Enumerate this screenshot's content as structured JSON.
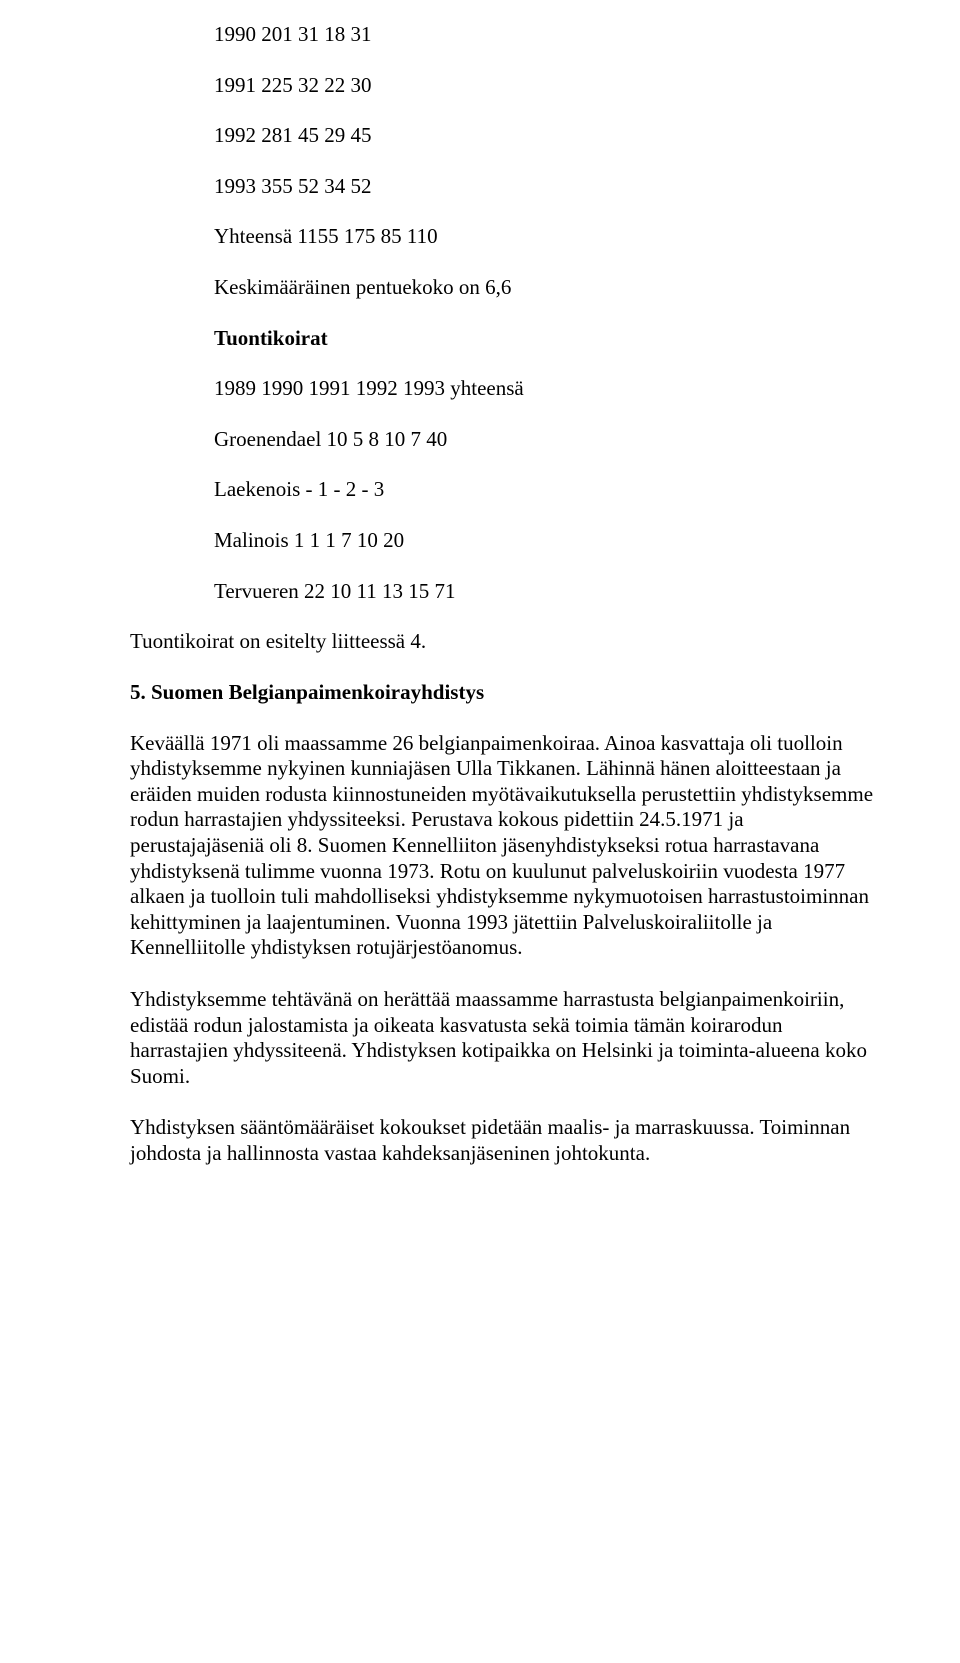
{
  "rows": {
    "r1990": "1990 201 31 18 31",
    "r1991": "1991 225 32 22 30",
    "r1992": "1992 281 45 29 45",
    "r1993": "1993 355 52 34 52",
    "total": "Yhteensä 1155 175 85 110"
  },
  "avg_litter": "Keskimääräinen pentuekoko on 6,6",
  "import_heading": "Tuontikoirat",
  "import_years": "1989 1990 1991 1992 1993 yhteensä",
  "import": {
    "groenendael": "Groenendael 10 5 8 10 7 40",
    "laekenois": "Laekenois - 1 - 2 - 3",
    "malinois": "Malinois 1 1 1 7 10 20",
    "tervueren": "Tervueren 22 10 11 13 15 71"
  },
  "import_note": "Tuontikoirat on esitelty liitteessä 4.",
  "section5_title": "5. Suomen Belgianpaimenkoirayhdistys",
  "para1": "Keväällä 1971 oli maassamme 26 belgianpaimenkoiraa. Ainoa kasvattaja oli tuolloin yhdistyksemme nykyinen kunniajäsen Ulla Tikkanen. Lähinnä hänen aloitteestaan ja eräiden muiden rodusta kiinnostuneiden myötävaikutuksella perustettiin yhdistyksemme rodun harrastajien yhdyssiteeksi. Perustava kokous pidettiin 24.5.1971 ja perustajajäseniä oli 8. Suomen Kennelliiton jäsenyhdistykseksi rotua harrastavana yhdistyksenä tulimme vuonna 1973. Rotu on kuulunut palveluskoiriin vuodesta 1977 alkaen ja tuolloin tuli mahdolliseksi yhdistyksemme nykymuotoisen harrastustoiminnan kehittyminen ja laajentuminen. Vuonna 1993 jätettiin Palveluskoiraliitolle ja Kennelliitolle yhdistyksen rotujärjestöanomus.",
  "para2": "Yhdistyksemme tehtävänä on herättää maassamme harrastusta belgianpaimenkoiriin, edistää rodun jalostamista ja oikeata kasvatusta sekä toimia tämän koirarodun harrastajien yhdyssiteenä. Yhdistyksen kotipaikka on Helsinki ja toiminta-alueena koko Suomi.",
  "para3": "Yhdistyksen sääntömääräiset kokoukset pidetään maalis- ja marraskuussa. Toiminnan johdosta ja hallinnosta vastaa kahdeksanjäseninen johtokunta."
}
